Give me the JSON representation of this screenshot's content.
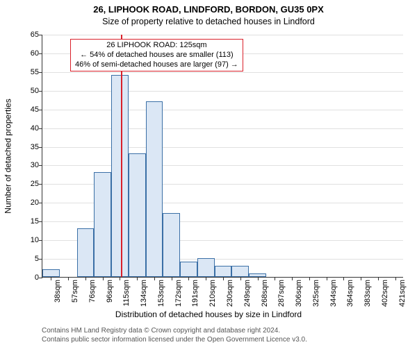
{
  "title_line1": "26, LIPHOOK ROAD, LINDFORD, BORDON, GU35 0PX",
  "title_line2": "Size of property relative to detached houses in Lindford",
  "ylabel": "Number of detached properties",
  "xlabel": "Distribution of detached houses by size in Lindford",
  "footer_line1": "Contains HM Land Registry data © Crown copyright and database right 2024.",
  "footer_line2": "Contains public sector information licensed under the Open Government Licence v3.0.",
  "annotation": {
    "line1": "26 LIPHOOK ROAD: 125sqm",
    "line2": "← 54% of detached houses are smaller (113)",
    "line3": "46% of semi-detached houses are larger (97) →"
  },
  "chart": {
    "type": "histogram",
    "ylim": [
      0,
      65
    ],
    "ytick_step": 5,
    "xtick_labels": [
      "38sqm",
      "57sqm",
      "76sqm",
      "96sqm",
      "115sqm",
      "134sqm",
      "153sqm",
      "172sqm",
      "191sqm",
      "210sqm",
      "230sqm",
      "249sqm",
      "268sqm",
      "287sqm",
      "306sqm",
      "325sqm",
      "344sqm",
      "364sqm",
      "383sqm",
      "402sqm",
      "421sqm"
    ],
    "values": [
      2,
      0,
      13,
      28,
      54,
      33,
      47,
      17,
      4,
      5,
      3,
      3,
      1,
      0,
      0,
      0,
      0,
      0,
      0,
      0,
      0
    ],
    "bar_fill": "#dbe7f5",
    "bar_stroke": "#3a6fa6",
    "grid_color": "#e0e0e0",
    "background_color": "#ffffff",
    "marker_x_bin": 4.55,
    "marker_color": "#d9202a",
    "annotation_border": "#d9202a",
    "title_fontsize": 13,
    "subtitle_fontsize": 12.5,
    "axis_label_fontsize": 12,
    "tick_fontsize": 11,
    "annotation_fontsize": 11,
    "footer_fontsize": 10
  }
}
